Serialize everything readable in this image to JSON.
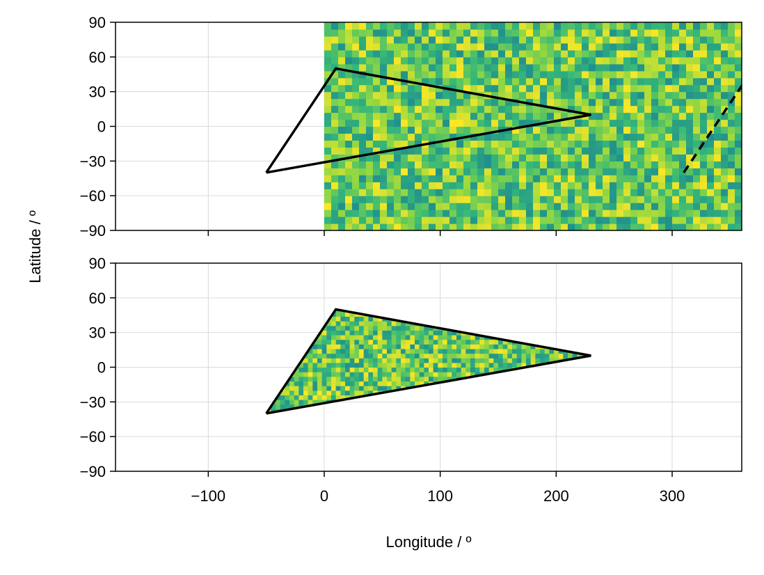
{
  "chart_data": {
    "type": "heatmap",
    "xlabel": "Longitude / º",
    "ylabel": "Latitude / º",
    "xlim": [
      -180,
      360
    ],
    "ylim": [
      -90,
      90
    ],
    "x_ticks": [
      -100,
      0,
      100,
      200,
      300
    ],
    "x_tick_labels": [
      "−100",
      "0",
      "100",
      "200",
      "300"
    ],
    "y_ticks": [
      90,
      60,
      30,
      0,
      -30,
      -60,
      -90
    ],
    "y_tick_labels": [
      "90",
      "60",
      "30",
      "0",
      "−30",
      "−60",
      "−90"
    ],
    "grid": true,
    "colormap": [
      "#440154",
      "#21908d",
      "#35b779",
      "#90d743",
      "#fde725"
    ],
    "polygon": {
      "lon": [
        -50,
        10,
        230,
        -50
      ],
      "lat": [
        -40,
        50,
        10,
        -40
      ]
    },
    "panels": [
      {
        "name": "top",
        "raster_lon_range": [
          0,
          360
        ],
        "raster_lat_range": [
          -90,
          90
        ],
        "raster_cell_size": 6,
        "show_x_tick_labels": false,
        "wrapped_polygon": {
          "lon": [
            310,
            370,
            590
          ],
          "lat": [
            -40,
            50,
            10
          ]
        }
      },
      {
        "name": "bottom",
        "raster_clip": "polygon",
        "raster_cell_size": 4,
        "show_x_tick_labels": true
      }
    ]
  }
}
